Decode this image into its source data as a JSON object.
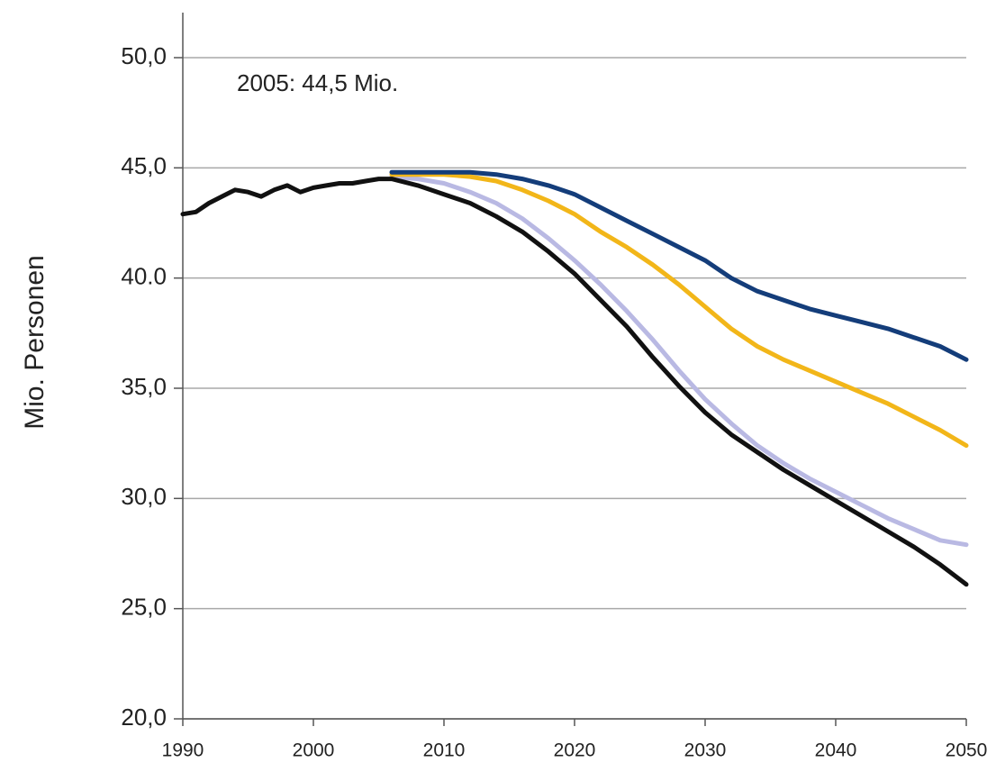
{
  "chart_data": {
    "type": "line",
    "y_label": "Mio. Personen",
    "annotation": "2005: 44,5 Mio.",
    "xlim": [
      1990,
      2050
    ],
    "xticks": [
      1990,
      2000,
      2010,
      2020,
      2030,
      2040,
      2050
    ],
    "ylim": [
      20,
      50
    ],
    "yticks": [
      {
        "value": 20,
        "label": "20,0"
      },
      {
        "value": 25,
        "label": "25,0"
      },
      {
        "value": 30,
        "label": "30,0"
      },
      {
        "value": 35,
        "label": "35,0"
      },
      {
        "value": 40,
        "label": "40.0"
      },
      {
        "value": 45,
        "label": "45,0"
      },
      {
        "value": 50,
        "label": "50,0"
      }
    ],
    "grid": true,
    "series": [
      {
        "color": "#b9b9e3",
        "x": [
          2006,
          2008,
          2010,
          2012,
          2014,
          2016,
          2018,
          2020,
          2022,
          2024,
          2026,
          2028,
          2030,
          2032,
          2034,
          2036,
          2038,
          2040,
          2042,
          2044,
          2046,
          2048,
          2050
        ],
        "values": [
          44.6,
          44.5,
          44.3,
          43.9,
          43.4,
          42.7,
          41.8,
          40.8,
          39.7,
          38.5,
          37.2,
          35.8,
          34.5,
          33.4,
          32.4,
          31.6,
          30.9,
          30.3,
          29.7,
          29.1,
          28.6,
          28.1,
          27.9
        ]
      },
      {
        "color": "#f2b619",
        "x": [
          2006,
          2008,
          2010,
          2012,
          2014,
          2016,
          2018,
          2020,
          2022,
          2024,
          2026,
          2028,
          2030,
          2032,
          2034,
          2036,
          2038,
          2040,
          2042,
          2044,
          2046,
          2048,
          2050
        ],
        "values": [
          44.7,
          44.7,
          44.7,
          44.6,
          44.4,
          44.0,
          43.5,
          42.9,
          42.1,
          41.4,
          40.6,
          39.7,
          38.7,
          37.7,
          36.9,
          36.3,
          35.8,
          35.3,
          34.8,
          34.3,
          33.7,
          33.1,
          32.4
        ]
      },
      {
        "color": "#143d7a",
        "x": [
          2006,
          2008,
          2010,
          2012,
          2014,
          2016,
          2018,
          2020,
          2022,
          2024,
          2026,
          2028,
          2030,
          2032,
          2034,
          2036,
          2038,
          2040,
          2042,
          2044,
          2046,
          2048,
          2050
        ],
        "values": [
          44.8,
          44.8,
          44.8,
          44.8,
          44.7,
          44.5,
          44.2,
          43.8,
          43.2,
          42.6,
          42.0,
          41.4,
          40.8,
          40.0,
          39.4,
          39.0,
          38.6,
          38.3,
          38.0,
          37.7,
          37.3,
          36.9,
          36.3
        ]
      },
      {
        "color": "#111111",
        "x": [
          1990,
          1991,
          1992,
          1993,
          1994,
          1995,
          1996,
          1997,
          1998,
          1999,
          2000,
          2001,
          2002,
          2003,
          2004,
          2005,
          2006,
          2008,
          2010,
          2012,
          2014,
          2016,
          2018,
          2020,
          2022,
          2024,
          2026,
          2028,
          2030,
          2032,
          2034,
          2036,
          2038,
          2040,
          2042,
          2044,
          2046,
          2048,
          2050
        ],
        "values": [
          42.9,
          43.0,
          43.4,
          43.7,
          44.0,
          43.9,
          43.7,
          44.0,
          44.2,
          43.9,
          44.1,
          44.2,
          44.3,
          44.3,
          44.4,
          44.5,
          44.5,
          44.2,
          43.8,
          43.4,
          42.8,
          42.1,
          41.2,
          40.2,
          39.0,
          37.8,
          36.4,
          35.1,
          33.9,
          32.9,
          32.1,
          31.3,
          30.6,
          29.9,
          29.2,
          28.5,
          27.8,
          27.0,
          26.1
        ]
      }
    ]
  }
}
